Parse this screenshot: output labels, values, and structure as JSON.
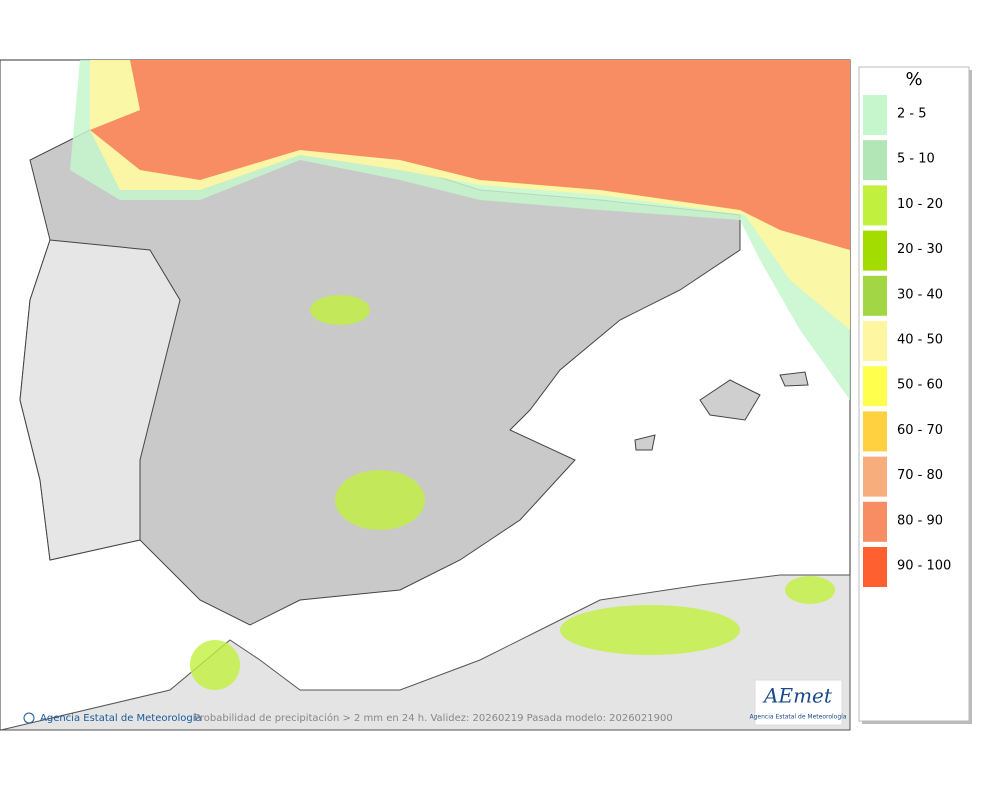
{
  "legend": {
    "title": "%",
    "items": [
      {
        "label": "2 - 5",
        "color": "#c6f6cc"
      },
      {
        "label": "5 - 10",
        "color": "#b2e6b6"
      },
      {
        "label": "10 - 20",
        "color": "#c2f03e"
      },
      {
        "label": "20 - 30",
        "color": "#a2dc00"
      },
      {
        "label": "30 - 40",
        "color": "#a2d644"
      },
      {
        "label": "40 - 50",
        "color": "#fff6a2"
      },
      {
        "label": "50 - 60",
        "color": "#ffff4e"
      },
      {
        "label": "60 - 70",
        "color": "#ffd040"
      },
      {
        "label": "70 - 80",
        "color": "#f8ae7c"
      },
      {
        "label": "80 - 90",
        "color": "#f88c62"
      },
      {
        "label": "90 - 100",
        "color": "#ff6030"
      }
    ]
  },
  "map": {
    "credit": "Agencia Estatal de Meteorología",
    "caption": "Probabilidad de precipitación > 2 mm en 24 h. Validez: 20260219 Pasada modelo: 2026021900"
  },
  "logo": {
    "text": "AEmet",
    "subtitle": "Agencia Estatal de Meteorología"
  }
}
